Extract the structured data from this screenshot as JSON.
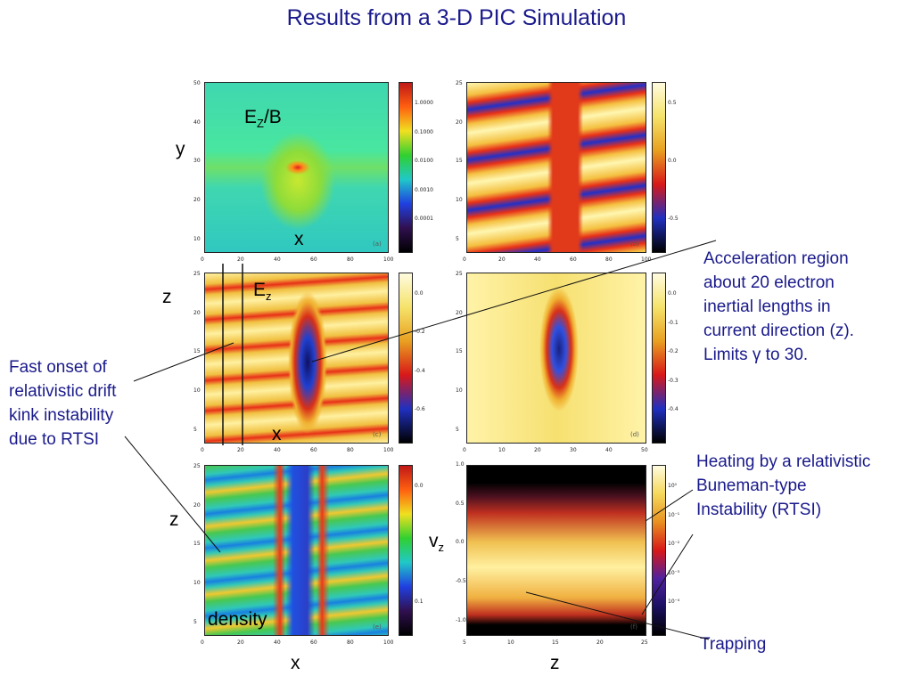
{
  "title": "Results from a 3-D PIC Simulation",
  "annotations": {
    "acceleration": [
      "Acceleration region",
      "about 20 electron",
      "inertial lengths in",
      "current direction (z).",
      "Limits γ to 30."
    ],
    "fast_onset": [
      "Fast onset of",
      "relativistic drift",
      "kink instability",
      "due to RTSI"
    ],
    "heating": [
      "Heating by a relativistic",
      "Buneman-type",
      "Instability (RTSI)"
    ],
    "trapping": "Trapping"
  },
  "labels": {
    "ez_b_E": "E",
    "ez_b_sub": "Z",
    "ez_b_rest": "/B",
    "ez_E": "E",
    "ez_sub": "z",
    "density": "density",
    "vz_v": "v",
    "vz_sub": "z",
    "y": "y",
    "z1": "z",
    "z2": "z",
    "x1": "x",
    "x2": "x",
    "x3": "x",
    "z_bottom": "z"
  },
  "panels": {
    "a": {
      "tag": "(a)",
      "ticks_left": [
        "50",
        "40",
        "30",
        "20",
        "10"
      ],
      "ticks_bottom": [
        "0",
        "20",
        "40",
        "60",
        "80",
        "100"
      ],
      "cbar": [
        "1.0000",
        "0.1000",
        "0.0100",
        "0.0010",
        "0.0001"
      ]
    },
    "b": {
      "tag": "(b)",
      "ticks_left": [
        "25",
        "20",
        "15",
        "10",
        "5"
      ],
      "ticks_bottom": [
        "0",
        "20",
        "40",
        "60",
        "80",
        "100"
      ],
      "cbar": [
        "0.5",
        "0.0",
        "-0.5"
      ]
    },
    "c": {
      "tag": "(c)",
      "ticks_left": [
        "25",
        "20",
        "15",
        "10",
        "5"
      ],
      "ticks_bottom": [
        "0",
        "20",
        "40",
        "60",
        "80",
        "100"
      ],
      "cbar": [
        "0.0",
        "-0.2",
        "-0.4",
        "-0.6"
      ]
    },
    "d": {
      "tag": "(d)",
      "ticks_left": [
        "25",
        "20",
        "15",
        "10",
        "5"
      ],
      "ticks_bottom": [
        "0",
        "10",
        "20",
        "30",
        "40",
        "50"
      ],
      "cbar": [
        "0.0",
        "-0.1",
        "-0.2",
        "-0.3",
        "-0.4"
      ]
    },
    "e": {
      "tag": "(e)",
      "ticks_left": [
        "25",
        "20",
        "15",
        "10",
        "5"
      ],
      "ticks_bottom": [
        "0",
        "20",
        "40",
        "60",
        "80",
        "100"
      ],
      "cbar": [
        "0.0",
        "0.1"
      ]
    },
    "f": {
      "tag": "(f)",
      "ticks_left": [
        "1.0",
        "0.5",
        "0.0",
        "-0.5",
        "-1.0"
      ],
      "ticks_bottom": [
        "5",
        "10",
        "15",
        "20",
        "25"
      ],
      "cbar": [
        "10⁰",
        "10⁻¹",
        "10⁻²",
        "10⁻³",
        "10⁻⁴"
      ]
    }
  }
}
